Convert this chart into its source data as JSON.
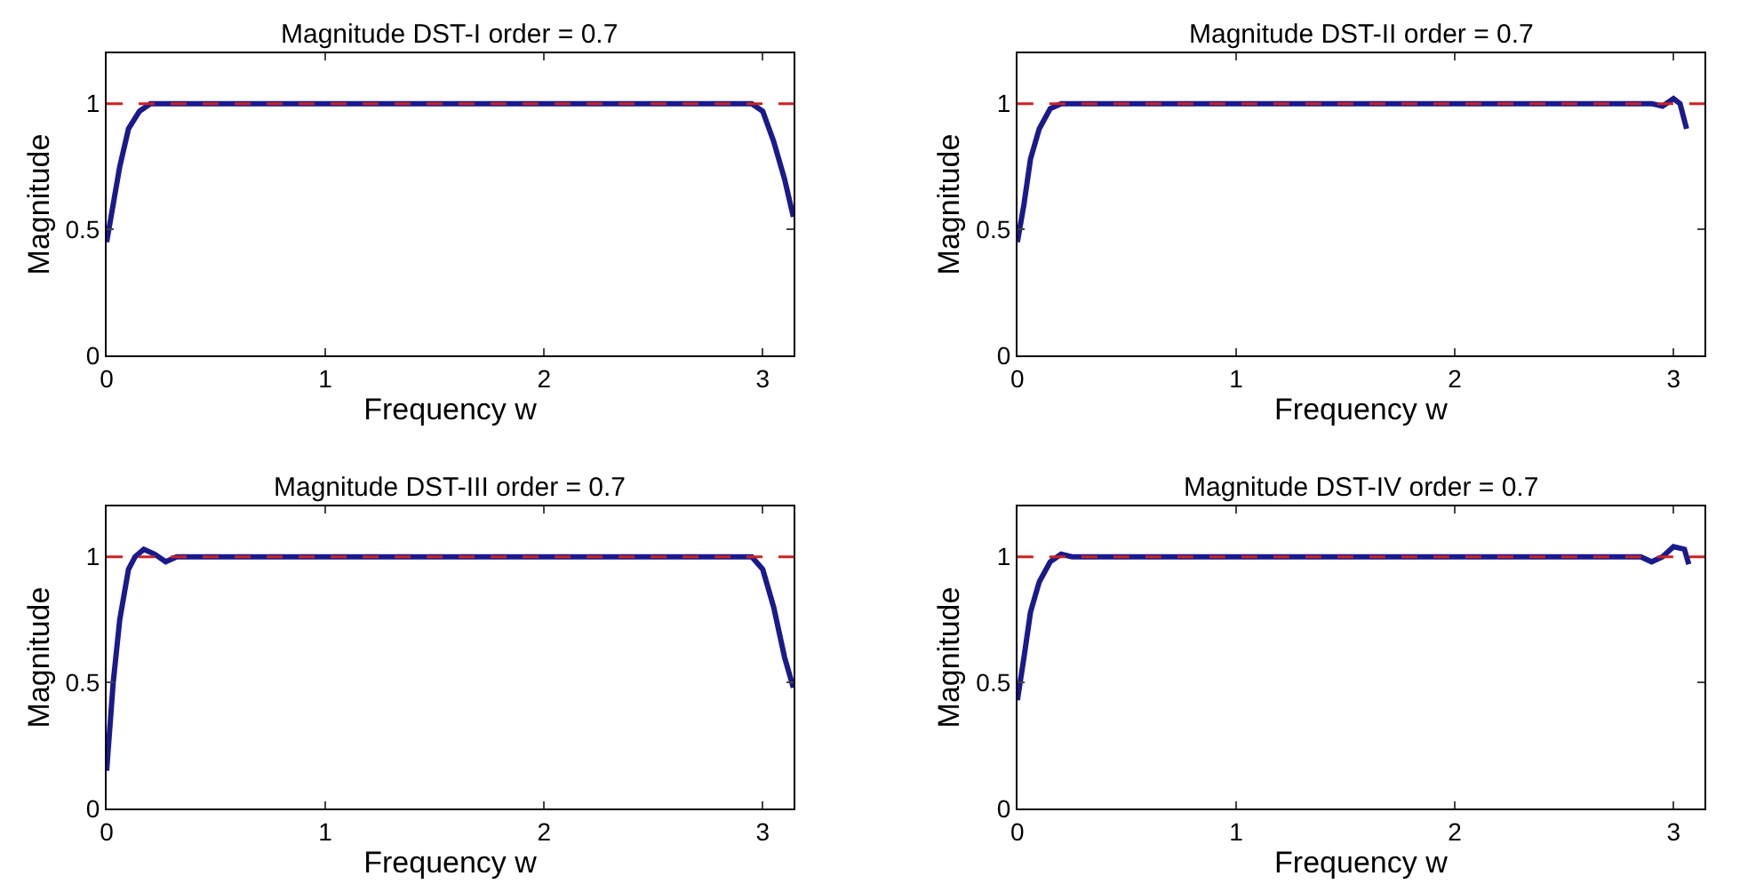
{
  "chart_data": [
    {
      "type": "line",
      "title": "Magnitude DST-I order = 0.7",
      "xlabel": "Frequency w",
      "ylabel": "Magnitude",
      "xlim": [
        0,
        3.1416
      ],
      "ylim": [
        0,
        1.2
      ],
      "xticks": [
        0,
        1,
        2,
        3
      ],
      "yticks": [
        0,
        0.5,
        1
      ],
      "series": [
        {
          "color": "#1a1a8c",
          "x": [
            0,
            0.03,
            0.06,
            0.1,
            0.15,
            0.2,
            0.4,
            1.0,
            2.0,
            2.7,
            2.95,
            3.0,
            3.05,
            3.1,
            3.14
          ],
          "values": [
            0.45,
            0.6,
            0.75,
            0.9,
            0.97,
            1.0,
            1.0,
            1.0,
            1.0,
            1.0,
            1.0,
            0.97,
            0.85,
            0.7,
            0.55
          ]
        }
      ],
      "ref_lines": [
        {
          "axis": "y",
          "value": 1,
          "color": "#cc2222",
          "line_style": "dashed"
        }
      ]
    },
    {
      "type": "line",
      "title": "Magnitude DST-II order = 0.7",
      "xlabel": "Frequency w",
      "ylabel": "Magnitude",
      "xlim": [
        0,
        3.1416
      ],
      "ylim": [
        0,
        1.2
      ],
      "xticks": [
        0,
        1,
        2,
        3
      ],
      "yticks": [
        0,
        0.5,
        1
      ],
      "series": [
        {
          "color": "#1a1a8c",
          "x": [
            0,
            0.03,
            0.06,
            0.1,
            0.15,
            0.2,
            0.4,
            1.0,
            2.0,
            2.9,
            2.95,
            3.0,
            3.03,
            3.06
          ],
          "values": [
            0.45,
            0.6,
            0.78,
            0.9,
            0.98,
            1.0,
            1.0,
            1.0,
            1.0,
            1.0,
            0.99,
            1.02,
            1.0,
            0.9
          ]
        }
      ],
      "ref_lines": [
        {
          "axis": "y",
          "value": 1,
          "color": "#cc2222",
          "line_style": "dashed"
        }
      ]
    },
    {
      "type": "line",
      "title": "Magnitude DST-III order = 0.7",
      "xlabel": "Frequency w",
      "ylabel": "Magnitude",
      "xlim": [
        0,
        3.1416
      ],
      "ylim": [
        0,
        1.2
      ],
      "xticks": [
        0,
        1,
        2,
        3
      ],
      "yticks": [
        0,
        0.5,
        1
      ],
      "series": [
        {
          "color": "#1a1a8c",
          "x": [
            0,
            0.03,
            0.06,
            0.1,
            0.13,
            0.17,
            0.22,
            0.27,
            0.32,
            1.0,
            2.0,
            2.95,
            3.0,
            3.05,
            3.1,
            3.14
          ],
          "values": [
            0.15,
            0.5,
            0.75,
            0.95,
            1.0,
            1.03,
            1.01,
            0.98,
            1.0,
            1.0,
            1.0,
            1.0,
            0.95,
            0.8,
            0.6,
            0.48
          ]
        }
      ],
      "ref_lines": [
        {
          "axis": "y",
          "value": 1,
          "color": "#cc2222",
          "line_style": "dashed"
        }
      ]
    },
    {
      "type": "line",
      "title": "Magnitude DST-IV order = 0.7",
      "xlabel": "Frequency w",
      "ylabel": "Magnitude",
      "xlim": [
        0,
        3.1416
      ],
      "ylim": [
        0,
        1.2
      ],
      "xticks": [
        0,
        1,
        2,
        3
      ],
      "yticks": [
        0,
        0.5,
        1
      ],
      "series": [
        {
          "color": "#1a1a8c",
          "x": [
            0,
            0.03,
            0.06,
            0.1,
            0.15,
            0.2,
            0.25,
            1.0,
            2.0,
            2.85,
            2.9,
            2.95,
            3.0,
            3.05,
            3.07
          ],
          "values": [
            0.43,
            0.6,
            0.78,
            0.9,
            0.98,
            1.01,
            1.0,
            1.0,
            1.0,
            1.0,
            0.98,
            1.0,
            1.04,
            1.03,
            0.97
          ]
        }
      ],
      "ref_lines": [
        {
          "axis": "y",
          "value": 1,
          "color": "#cc2222",
          "line_style": "dashed"
        }
      ]
    }
  ]
}
